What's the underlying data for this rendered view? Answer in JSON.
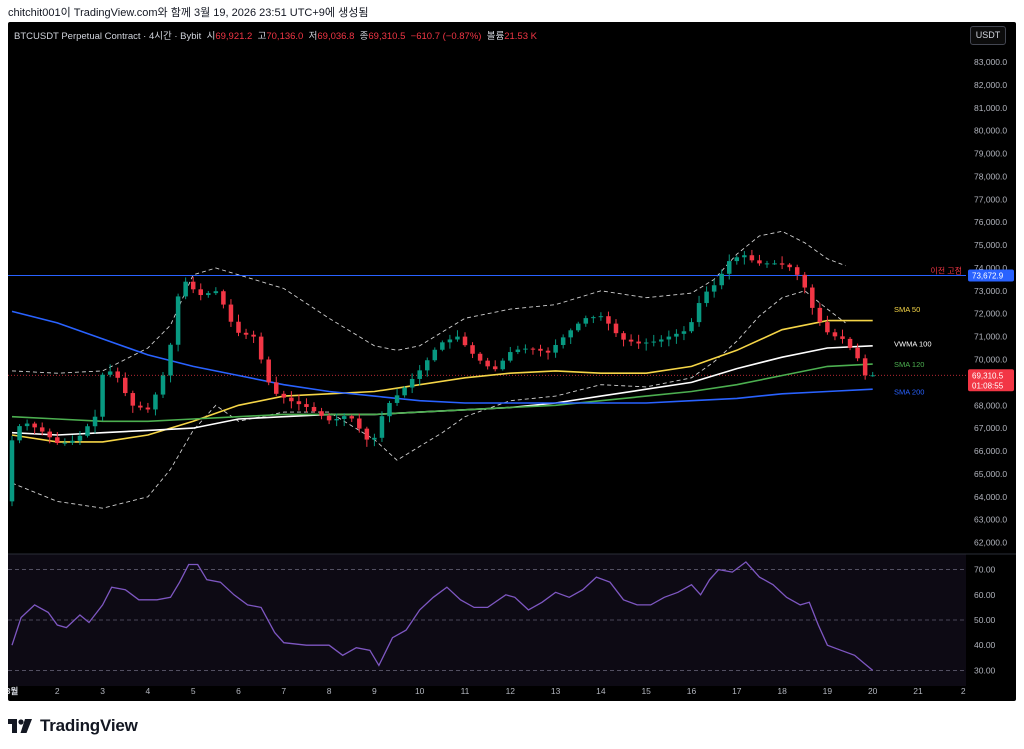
{
  "caption": "chitchit001이 TradingView.com와 함께 3월 19, 2026 23:51 UTC+9에 생성됨",
  "brand": {
    "name": "TradingView",
    "logo_icon": "tradingview-logo-icon"
  },
  "header": {
    "symbol": "BTCUSDT Perpetual Contract · 4시간 · Bybit",
    "open_label": "시",
    "open": "69,921.2",
    "high_label": "고",
    "high": "70,136.0",
    "low_label": "저",
    "low": "69,036.8",
    "close_label": "종",
    "close": "69,310.5",
    "change": "−610.7 (−0.87%)",
    "volume_label": "볼륨",
    "volume": "21.53 K",
    "currency_button": "USDT"
  },
  "colors": {
    "up": "#089981",
    "down": "#f23645",
    "sma50": "#f5d547",
    "vwma100": "#ffffff",
    "sma120": "#4caf50",
    "sma200": "#2962ff",
    "rsi": "#7e57c2",
    "prev_close": "#2962ff"
  },
  "chart_data": [
    {
      "type": "candlestick",
      "panel": "price",
      "interval": "4h",
      "ylim": [
        61500,
        83000
      ],
      "y_ticks": [
        "62,000.0",
        "63,000.0",
        "64,000.0",
        "65,000.0",
        "66,000.0",
        "67,000.0",
        "68,000.0",
        "69,000.0",
        "70,000.0",
        "71,000.0",
        "72,000.0",
        "73,000.0",
        "74,000.0",
        "75,000.0",
        "76,000.0",
        "77,000.0",
        "78,000.0",
        "79,000.0",
        "80,000.0",
        "81,000.0",
        "82,000.0",
        "83,000.0"
      ],
      "x_ticks": [
        {
          "label": "3월",
          "day": 1
        },
        {
          "label": "2",
          "day": 2
        },
        {
          "label": "3",
          "day": 3
        },
        {
          "label": "4",
          "day": 4
        },
        {
          "label": "5",
          "day": 5
        },
        {
          "label": "6",
          "day": 6
        },
        {
          "label": "7",
          "day": 7
        },
        {
          "label": "8",
          "day": 8
        },
        {
          "label": "9",
          "day": 9
        },
        {
          "label": "10",
          "day": 10
        },
        {
          "label": "11",
          "day": 11
        },
        {
          "label": "12",
          "day": 12
        },
        {
          "label": "13",
          "day": 13
        },
        {
          "label": "14",
          "day": 14
        },
        {
          "label": "15",
          "day": 15
        },
        {
          "label": "16",
          "day": 16
        },
        {
          "label": "17",
          "day": 17
        },
        {
          "label": "18",
          "day": 18
        },
        {
          "label": "19",
          "day": 19
        },
        {
          "label": "20",
          "day": 20
        },
        {
          "label": "21",
          "day": 21
        },
        {
          "label": "2",
          "day": 22
        }
      ],
      "price_path": [
        [
          1.0,
          63800
        ],
        [
          1.2,
          67000
        ],
        [
          1.5,
          67200
        ],
        [
          1.8,
          66900
        ],
        [
          2.2,
          66300
        ],
        [
          2.6,
          66500
        ],
        [
          3.0,
          67500
        ],
        [
          3.2,
          69700
        ],
        [
          3.5,
          69200
        ],
        [
          3.8,
          68000
        ],
        [
          4.2,
          67800
        ],
        [
          4.6,
          69800
        ],
        [
          4.9,
          73600
        ],
        [
          5.3,
          72800
        ],
        [
          5.7,
          73000
        ],
        [
          6.1,
          71200
        ],
        [
          6.5,
          71000
        ],
        [
          6.9,
          68600
        ],
        [
          7.3,
          68200
        ],
        [
          7.7,
          67900
        ],
        [
          8.2,
          67300
        ],
        [
          8.6,
          67600
        ],
        [
          8.9,
          66800
        ],
        [
          9.1,
          66200
        ],
        [
          9.4,
          67900
        ],
        [
          9.8,
          68700
        ],
        [
          10.2,
          69600
        ],
        [
          10.6,
          70700
        ],
        [
          11.0,
          71000
        ],
        [
          11.4,
          70100
        ],
        [
          11.8,
          69500
        ],
        [
          12.2,
          70400
        ],
        [
          12.6,
          70500
        ],
        [
          13.0,
          70300
        ],
        [
          13.4,
          71100
        ],
        [
          13.8,
          71800
        ],
        [
          14.2,
          71900
        ],
        [
          14.6,
          70900
        ],
        [
          15.0,
          70700
        ],
        [
          15.4,
          70800
        ],
        [
          15.8,
          71100
        ],
        [
          16.1,
          71300
        ],
        [
          16.4,
          72800
        ],
        [
          16.7,
          73300
        ],
        [
          17.0,
          74300
        ],
        [
          17.3,
          74600
        ],
        [
          17.6,
          74200
        ],
        [
          18.0,
          74200
        ],
        [
          18.3,
          74100
        ],
        [
          18.6,
          73500
        ],
        [
          18.9,
          71900
        ],
        [
          19.2,
          71100
        ],
        [
          19.5,
          70900
        ],
        [
          19.8,
          70200
        ],
        [
          20.0,
          69310
        ]
      ],
      "bb_upper": [
        [
          1,
          69500
        ],
        [
          2,
          69400
        ],
        [
          3,
          69500
        ],
        [
          4,
          70500
        ],
        [
          4.5,
          71500
        ],
        [
          5,
          73700
        ],
        [
          5.5,
          74000
        ],
        [
          6,
          73700
        ],
        [
          7,
          73100
        ],
        [
          8,
          71800
        ],
        [
          9,
          70600
        ],
        [
          9.5,
          70400
        ],
        [
          10,
          70600
        ],
        [
          10.5,
          71200
        ],
        [
          11,
          71800
        ],
        [
          12,
          72200
        ],
        [
          13,
          72400
        ],
        [
          14,
          73000
        ],
        [
          15,
          72700
        ],
        [
          16,
          72900
        ],
        [
          16.5,
          73500
        ],
        [
          17,
          74600
        ],
        [
          17.5,
          75400
        ],
        [
          18,
          75600
        ],
        [
          18.5,
          75100
        ],
        [
          19,
          74400
        ],
        [
          19.4,
          74100
        ]
      ],
      "bb_lower": [
        [
          1,
          64600
        ],
        [
          2,
          63800
        ],
        [
          3,
          63500
        ],
        [
          4,
          64000
        ],
        [
          4.5,
          65200
        ],
        [
          5,
          66900
        ],
        [
          5.5,
          68000
        ],
        [
          6,
          67300
        ],
        [
          7,
          67700
        ],
        [
          8,
          67700
        ],
        [
          9,
          66500
        ],
        [
          9.5,
          65600
        ],
        [
          10,
          66200
        ],
        [
          10.5,
          66800
        ],
        [
          11,
          67500
        ],
        [
          12,
          68200
        ],
        [
          13,
          68400
        ],
        [
          14,
          68900
        ],
        [
          15,
          68800
        ],
        [
          16,
          69200
        ],
        [
          16.5,
          69900
        ],
        [
          17,
          70800
        ],
        [
          17.5,
          71900
        ],
        [
          18,
          72700
        ],
        [
          18.5,
          73000
        ],
        [
          19,
          72200
        ],
        [
          19.4,
          71600
        ]
      ],
      "series": [
        {
          "name": "SMA 50",
          "color": "#f5d547",
          "values": [
            [
              1,
              66700
            ],
            [
              2,
              66400
            ],
            [
              3,
              66400
            ],
            [
              4,
              66700
            ],
            [
              5,
              67300
            ],
            [
              6,
              68000
            ],
            [
              7,
              68400
            ],
            [
              8,
              68500
            ],
            [
              9,
              68600
            ],
            [
              10,
              68900
            ],
            [
              11,
              69200
            ],
            [
              12,
              69400
            ],
            [
              13,
              69500
            ],
            [
              14,
              69400
            ],
            [
              15,
              69400
            ],
            [
              16,
              69700
            ],
            [
              17,
              70400
            ],
            [
              18,
              71300
            ],
            [
              19,
              71700
            ],
            [
              20,
              71700
            ]
          ]
        },
        {
          "name": "VWMA 100",
          "color": "#ffffff",
          "values": [
            [
              1,
              66800
            ],
            [
              2,
              66700
            ],
            [
              3,
              66800
            ],
            [
              4,
              66900
            ],
            [
              5,
              67000
            ],
            [
              6,
              67400
            ],
            [
              7,
              67500
            ],
            [
              8,
              67600
            ],
            [
              9,
              67600
            ],
            [
              10,
              67700
            ],
            [
              11,
              67800
            ],
            [
              12,
              67900
            ],
            [
              13,
              68100
            ],
            [
              14,
              68400
            ],
            [
              15,
              68700
            ],
            [
              16,
              69000
            ],
            [
              17,
              69600
            ],
            [
              18,
              70100
            ],
            [
              19,
              70500
            ],
            [
              20,
              70600
            ]
          ]
        },
        {
          "name": "SMA 120",
          "color": "#4caf50",
          "values": [
            [
              1,
              67500
            ],
            [
              2,
              67400
            ],
            [
              3,
              67300
            ],
            [
              4,
              67300
            ],
            [
              5,
              67400
            ],
            [
              6,
              67500
            ],
            [
              7,
              67600
            ],
            [
              8,
              67600
            ],
            [
              9,
              67600
            ],
            [
              10,
              67700
            ],
            [
              11,
              67800
            ],
            [
              12,
              67900
            ],
            [
              13,
              68000
            ],
            [
              14,
              68200
            ],
            [
              15,
              68400
            ],
            [
              16,
              68600
            ],
            [
              17,
              68900
            ],
            [
              18,
              69300
            ],
            [
              19,
              69700
            ],
            [
              20,
              69800
            ]
          ]
        },
        {
          "name": "SMA 200",
          "color": "#2962ff",
          "values": [
            [
              1,
              72100
            ],
            [
              2,
              71600
            ],
            [
              3,
              70900
            ],
            [
              4,
              70200
            ],
            [
              5,
              69700
            ],
            [
              6,
              69300
            ],
            [
              7,
              68900
            ],
            [
              8,
              68600
            ],
            [
              9,
              68400
            ],
            [
              10,
              68200
            ],
            [
              11,
              68100
            ],
            [
              12,
              68100
            ],
            [
              13,
              68100
            ],
            [
              14,
              68100
            ],
            [
              15,
              68100
            ],
            [
              16,
              68200
            ],
            [
              17,
              68300
            ],
            [
              18,
              68500
            ],
            [
              19,
              68600
            ],
            [
              20,
              68700
            ]
          ]
        }
      ],
      "annotations": {
        "prev_close_label": "이전 고점",
        "prev_close_value": "73,672.9",
        "prev_close_price": 73672.9,
        "last_price": "69,310.5",
        "last_price_value": 69310.5,
        "countdown": "01:08:55"
      }
    },
    {
      "type": "line",
      "panel": "rsi",
      "ylim": [
        27,
        73
      ],
      "y_ticks": [
        "30.00",
        "40.00",
        "50.00",
        "60.00",
        "70.00"
      ],
      "reference_lines": [
        30,
        50,
        70
      ],
      "values": [
        [
          1,
          40
        ],
        [
          1.2,
          51
        ],
        [
          1.5,
          56
        ],
        [
          1.8,
          53
        ],
        [
          2.0,
          48
        ],
        [
          2.2,
          47
        ],
        [
          2.5,
          52
        ],
        [
          2.7,
          49
        ],
        [
          3.0,
          56
        ],
        [
          3.2,
          63
        ],
        [
          3.5,
          62
        ],
        [
          3.8,
          58
        ],
        [
          4.2,
          58
        ],
        [
          4.5,
          59
        ],
        [
          4.7,
          65
        ],
        [
          4.9,
          72
        ],
        [
          5.1,
          72
        ],
        [
          5.3,
          66
        ],
        [
          5.6,
          65
        ],
        [
          5.9,
          60
        ],
        [
          6.2,
          56
        ],
        [
          6.5,
          55
        ],
        [
          6.8,
          45
        ],
        [
          7.0,
          41
        ],
        [
          7.5,
          40
        ],
        [
          8.0,
          40
        ],
        [
          8.3,
          36
        ],
        [
          8.6,
          39
        ],
        [
          8.9,
          38
        ],
        [
          9.1,
          32
        ],
        [
          9.4,
          43
        ],
        [
          9.7,
          46
        ],
        [
          10.0,
          54
        ],
        [
          10.3,
          59
        ],
        [
          10.6,
          63
        ],
        [
          10.9,
          58
        ],
        [
          11.2,
          55
        ],
        [
          11.5,
          55
        ],
        [
          11.9,
          60
        ],
        [
          12.1,
          59
        ],
        [
          12.4,
          54
        ],
        [
          12.7,
          57
        ],
        [
          13.0,
          61
        ],
        [
          13.3,
          59
        ],
        [
          13.6,
          62
        ],
        [
          13.9,
          67
        ],
        [
          14.2,
          65
        ],
        [
          14.5,
          58
        ],
        [
          14.8,
          56
        ],
        [
          15.1,
          56
        ],
        [
          15.4,
          59
        ],
        [
          15.7,
          61
        ],
        [
          16.0,
          64
        ],
        [
          16.2,
          60
        ],
        [
          16.4,
          66
        ],
        [
          16.6,
          70
        ],
        [
          16.9,
          69
        ],
        [
          17.2,
          73
        ],
        [
          17.5,
          67
        ],
        [
          17.8,
          64
        ],
        [
          18.1,
          59
        ],
        [
          18.4,
          56
        ],
        [
          18.6,
          57
        ],
        [
          18.8,
          48
        ],
        [
          19.0,
          40
        ],
        [
          19.3,
          38
        ],
        [
          19.6,
          36
        ],
        [
          19.8,
          33
        ],
        [
          20.0,
          30
        ]
      ]
    }
  ],
  "legend": [
    {
      "label": "SMA 50",
      "color": "#f5d547"
    },
    {
      "label": "VWMA 100",
      "color": "#ffffff"
    },
    {
      "label": "SMA 120",
      "color": "#4caf50"
    },
    {
      "label": "SMA 200",
      "color": "#2962ff"
    }
  ]
}
